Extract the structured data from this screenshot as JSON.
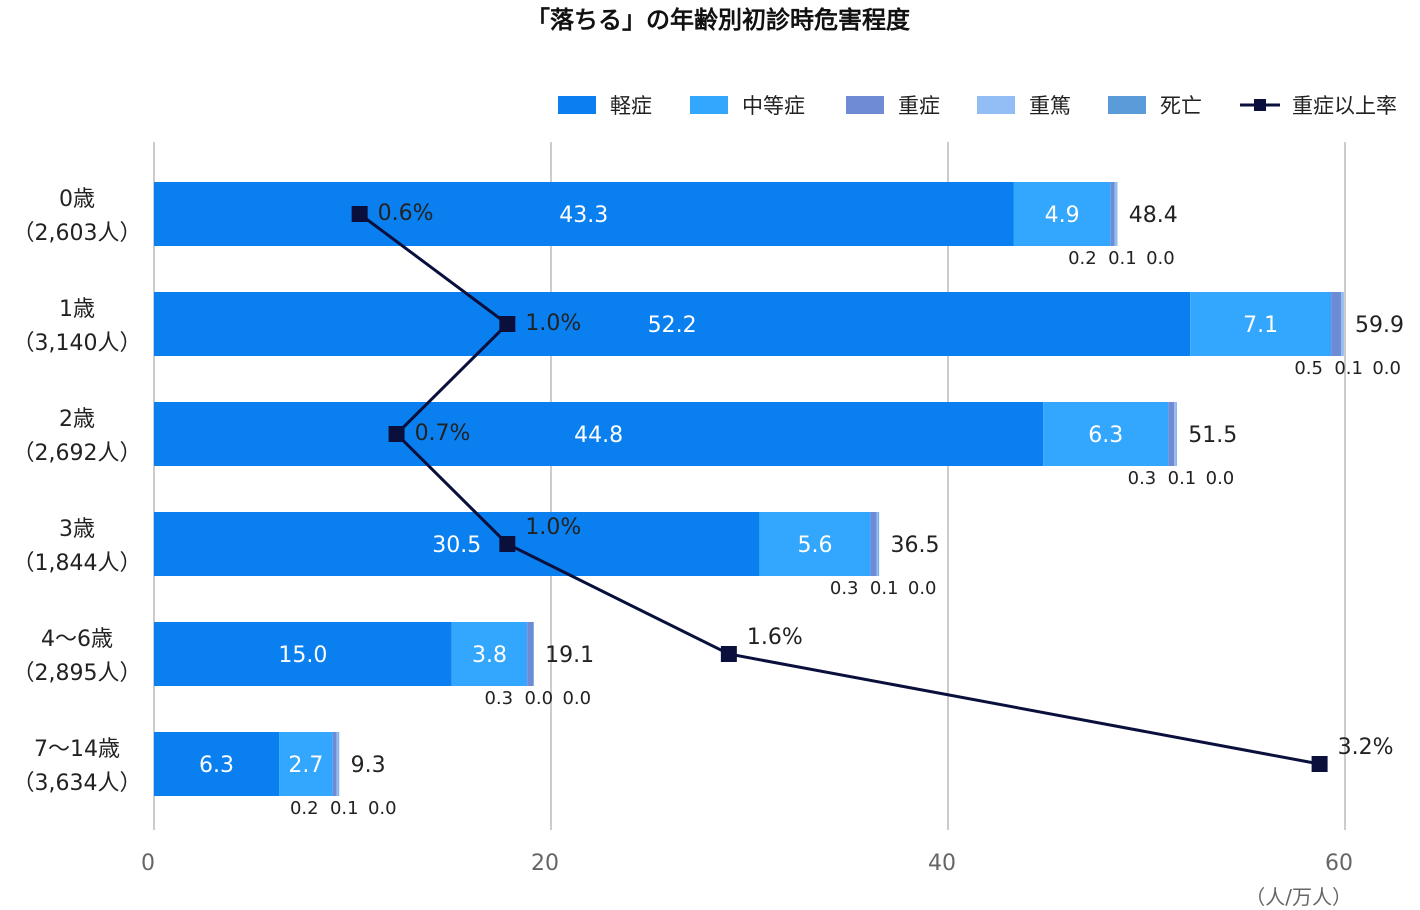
{
  "chart_data": {
    "type": "bar",
    "orientation": "horizontal",
    "stacked": true,
    "title": "「落ちる」の年齢別初診時危害程度",
    "unit_label": "（人/万人）",
    "categories": [
      {
        "line1": "0歳",
        "line2": "（2,603人）"
      },
      {
        "line1": "1歳",
        "line2": "（3,140人）"
      },
      {
        "line1": "2歳",
        "line2": "（2,692人）"
      },
      {
        "line1": "3歳",
        "line2": "（1,844人）"
      },
      {
        "line1": "4～6歳",
        "line2": "（2,895人）"
      },
      {
        "line1": "7～14歳",
        "line2": "（3,634人）"
      }
    ],
    "series": [
      {
        "name": "軽症",
        "color": "#0a7ff0",
        "values": [
          43.3,
          52.2,
          44.8,
          30.5,
          15.0,
          6.3
        ],
        "labels": [
          "43.3",
          "52.2",
          "44.8",
          "30.5",
          "15.0",
          "6.3"
        ]
      },
      {
        "name": "中等症",
        "color": "#33a6fd",
        "values": [
          4.9,
          7.1,
          6.3,
          5.6,
          3.8,
          2.7
        ],
        "labels": [
          "4.9",
          "7.1",
          "6.3",
          "5.6",
          "3.8",
          "2.7"
        ]
      },
      {
        "name": "重症",
        "color": "#6f8bd6",
        "values": [
          0.2,
          0.5,
          0.3,
          0.3,
          0.3,
          0.2
        ],
        "labels": [
          "0.2",
          "0.5",
          "0.3",
          "0.3",
          "0.3",
          "0.2"
        ]
      },
      {
        "name": "重篤",
        "color": "#93bdf5",
        "values": [
          0.1,
          0.1,
          0.1,
          0.1,
          0.0,
          0.1
        ],
        "labels": [
          "0.1",
          "0.1",
          "0.1",
          "0.1",
          "0.0",
          "0.1"
        ]
      },
      {
        "name": "死亡",
        "color": "#5b9bd9",
        "values": [
          0.0,
          0.0,
          0.0,
          0.0,
          0.0,
          0.0
        ],
        "labels": [
          "0.0",
          "0.0",
          "0.0",
          "0.0",
          "0.0",
          "0.0"
        ]
      }
    ],
    "totals": [
      "48.4",
      "59.9",
      "51.5",
      "36.5",
      "19.1",
      "9.3"
    ],
    "line_series": {
      "name": "重症以上率",
      "color": "#0a0f3c",
      "values": [
        0.6,
        1.0,
        0.7,
        1.0,
        1.6,
        3.2
      ],
      "labels": [
        "0.6%",
        "1.0%",
        "0.7%",
        "1.0%",
        "1.6%",
        "3.2%"
      ]
    },
    "xlim": [
      0,
      60
    ],
    "xticks": [
      0,
      20,
      40,
      60
    ],
    "grid": true,
    "legend": "top-right"
  }
}
